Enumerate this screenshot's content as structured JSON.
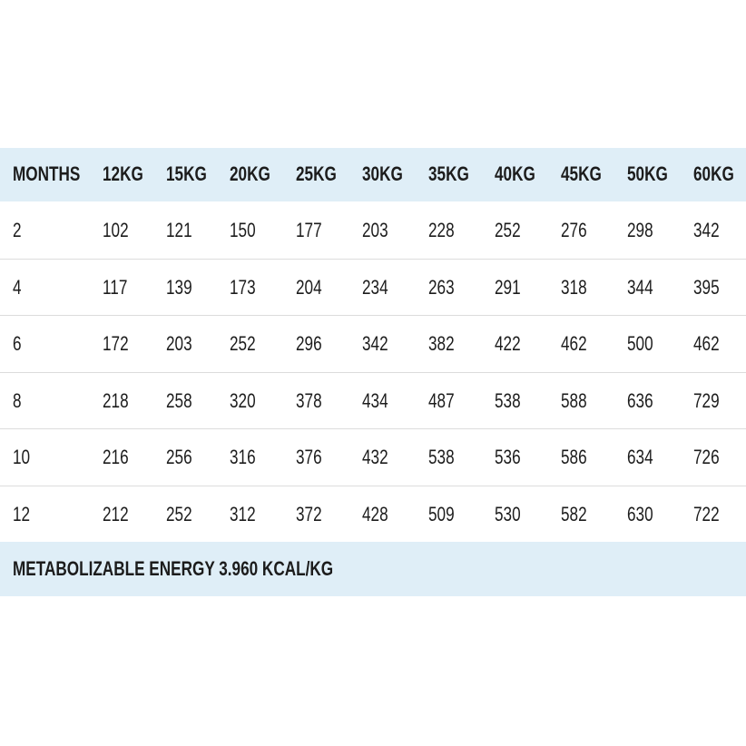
{
  "table": {
    "header": [
      "MONTHS",
      "12KG",
      "15KG",
      "20KG",
      "25KG",
      "30KG",
      "35KG",
      "40KG",
      "45KG",
      "50KG",
      "60KG"
    ],
    "rows": [
      [
        2,
        102,
        121,
        150,
        177,
        203,
        228,
        252,
        276,
        298,
        342
      ],
      [
        4,
        117,
        139,
        173,
        204,
        234,
        263,
        291,
        318,
        344,
        395
      ],
      [
        6,
        172,
        203,
        252,
        296,
        342,
        382,
        422,
        462,
        500,
        462
      ],
      [
        8,
        218,
        258,
        320,
        378,
        434,
        487,
        538,
        588,
        636,
        729
      ],
      [
        10,
        216,
        256,
        316,
        376,
        432,
        538,
        536,
        586,
        634,
        726
      ],
      [
        12,
        212,
        252,
        312,
        372,
        428,
        509,
        530,
        582,
        630,
        722
      ]
    ],
    "footer": "METABOLIZABLE ENERGY 3.960 KCAL/KG"
  }
}
